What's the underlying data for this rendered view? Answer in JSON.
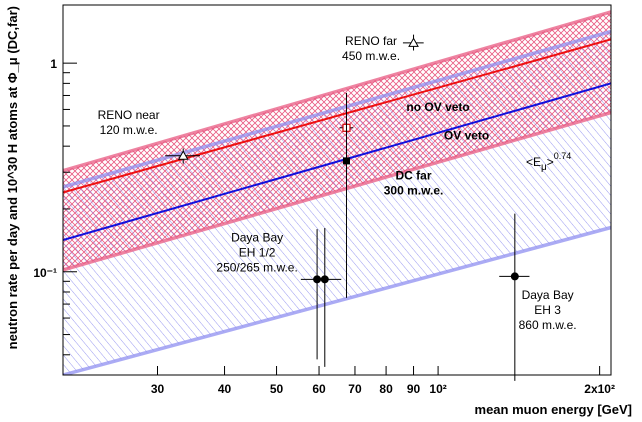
{
  "chart_data": {
    "type": "scatter",
    "xlabel": "mean muon energy [GeV]",
    "ylabel": "neutron rate per day and 10^30 H atoms at Φ_μ (DC,far)",
    "xscale": "log",
    "yscale": "log",
    "xlim": [
      20,
      210
    ],
    "ylim": [
      0.032,
      1.9
    ],
    "x_ticks": [
      {
        "value": 30,
        "label": "30"
      },
      {
        "value": 40,
        "label": "40"
      },
      {
        "value": 50,
        "label": "50"
      },
      {
        "value": 60,
        "label": "60"
      },
      {
        "value": 70,
        "label": "70"
      },
      {
        "value": 80,
        "label": "80"
      },
      {
        "value": 90,
        "label": "90"
      },
      {
        "value": 100,
        "label": "10²"
      },
      {
        "value": 200,
        "label": "2x10²"
      }
    ],
    "y_ticks": [
      {
        "value": 0.1,
        "label": "10⁻¹"
      },
      {
        "value": 1,
        "label": "1"
      }
    ],
    "power_law": {
      "label_base": "<E",
      "label_sub": "μ",
      "label_close": ">",
      "label_exp": "0.74",
      "exponent": 0.74
    },
    "lines": [
      {
        "name": "no OV veto",
        "color": "#ee1111",
        "points": [
          [
            20,
            0.24
          ],
          [
            210,
            1.3
          ]
        ]
      },
      {
        "name": "OV veto",
        "color": "#1111dd",
        "points": [
          [
            20,
            0.142
          ],
          [
            210,
            0.8
          ]
        ]
      }
    ],
    "bands": [
      {
        "color": "#e85a82",
        "hatch": "cross",
        "upper": [
          [
            20,
            0.305
          ],
          [
            210,
            1.76
          ]
        ],
        "lower": [
          [
            20,
            0.102
          ],
          [
            210,
            0.58
          ]
        ]
      },
      {
        "color": "#8f8ff0",
        "hatch": "diagonal",
        "upper": [
          [
            20,
            0.255
          ],
          [
            210,
            1.42
          ]
        ],
        "lower": [
          [
            20,
            0.032
          ],
          [
            210,
            0.163
          ]
        ]
      }
    ],
    "points": [
      {
        "name": "RENO near",
        "marker": "triangle-open",
        "x": 33.5,
        "y": 0.36,
        "xerr": [
          2.5,
          2.5
        ],
        "yerr": [
          0.03,
          0.03
        ]
      },
      {
        "name": "RENO far",
        "marker": "triangle-open",
        "x": 90,
        "y": 1.25,
        "xerr": [
          4,
          4
        ],
        "yerr": [
          0.1,
          0.12
        ]
      },
      {
        "name": "DC far open",
        "marker": "square-open",
        "x": 67.5,
        "y": 0.49,
        "xerr": [
          2,
          2
        ],
        "yerr": [
          0.04,
          0.08
        ]
      },
      {
        "name": "DC far",
        "marker": "square-filled",
        "x": 67.5,
        "y": 0.34,
        "xerr": [
          0,
          0
        ],
        "yerr": [
          0.265,
          0.38
        ]
      },
      {
        "name": "Daya Bay EH1",
        "marker": "circle-filled",
        "x": 59.5,
        "y": 0.092,
        "xerr": [
          4,
          0
        ],
        "yerr": [
          0.054,
          0.068
        ]
      },
      {
        "name": "Daya Bay EH2",
        "marker": "circle-filled",
        "x": 61.5,
        "y": 0.092,
        "xerr": [
          0,
          4.5
        ],
        "yerr": [
          0.057,
          0.07
        ]
      },
      {
        "name": "Daya Bay EH3",
        "marker": "circle-filled",
        "x": 139,
        "y": 0.095,
        "xerr": [
          9,
          9
        ],
        "yerr": [
          0.065,
          0.095
        ]
      }
    ],
    "annotations": [
      {
        "id": "reno-far",
        "lines": [
          "RENO far",
          "450 m.w.e."
        ],
        "bold": false,
        "x": 75,
        "y": 1.22
      },
      {
        "id": "reno-near",
        "lines": [
          "RENO near",
          "120 m.w.e."
        ],
        "bold": false,
        "x": 26.5,
        "y": 0.54
      },
      {
        "id": "no-ov-veto",
        "lines": [
          "no OV veto"
        ],
        "bold": true,
        "color": "#ee1111",
        "x": 100,
        "y": 0.59
      },
      {
        "id": "ov-veto",
        "lines": [
          "OV veto"
        ],
        "bold": true,
        "color": "#1111dd",
        "x": 113,
        "y": 0.43
      },
      {
        "id": "dc-far",
        "lines": [
          "DC far",
          "300 m.w.e."
        ],
        "bold": true,
        "x": 90,
        "y": 0.277
      },
      {
        "id": "daya-bay-eh12",
        "lines": [
          "Daya Bay",
          "EH 1/2",
          "250/265 m.w.e."
        ],
        "bold": false,
        "x": 46,
        "y": 0.14
      },
      {
        "id": "daya-bay-eh3",
        "lines": [
          "Daya Bay",
          "EH 3",
          "860 m.w.e."
        ],
        "bold": false,
        "x": 160,
        "y": 0.074
      }
    ]
  }
}
